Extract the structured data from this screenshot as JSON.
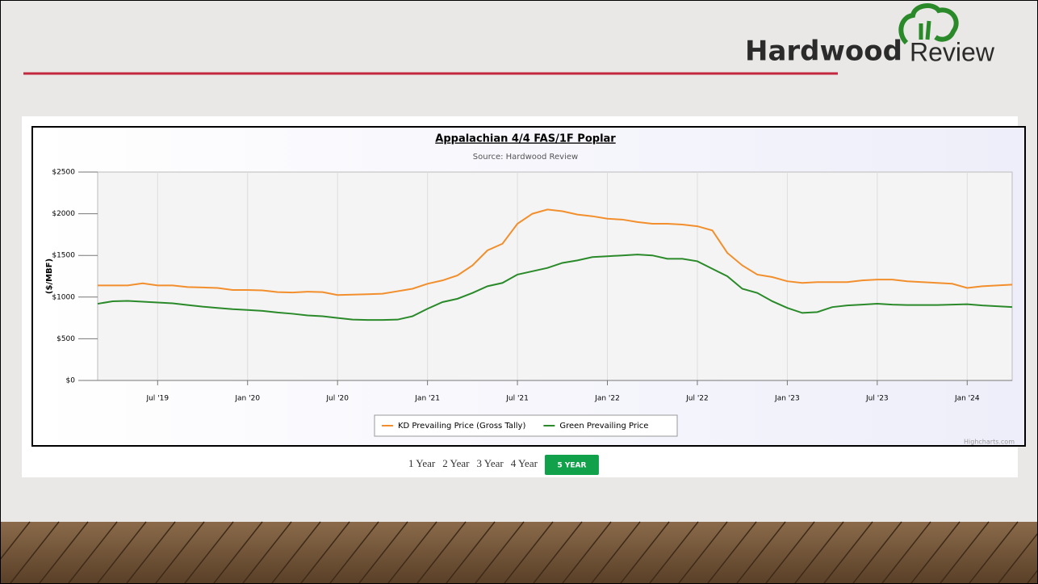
{
  "logo": {
    "brand": "Hardwood",
    "suffix": "Review"
  },
  "range_buttons": [
    "1 Year",
    "2 Year",
    "3 Year",
    "4 Year",
    "5 YEAR"
  ],
  "credit": "Highcharts.com",
  "chart_data": {
    "type": "line",
    "title": "Appalachian 4/4 FAS/1F Poplar",
    "subtitle": "Source: Hardwood Review",
    "y_label": "($/MBF)",
    "grid": true,
    "x": [
      "2019-03",
      "2019-04",
      "2019-05",
      "2019-06",
      "2019-07",
      "2019-08",
      "2019-09",
      "2019-10",
      "2019-11",
      "2019-12",
      "2020-01",
      "2020-02",
      "2020-03",
      "2020-04",
      "2020-05",
      "2020-06",
      "2020-07",
      "2020-08",
      "2020-09",
      "2020-10",
      "2020-11",
      "2020-12",
      "2021-01",
      "2021-02",
      "2021-03",
      "2021-04",
      "2021-05",
      "2021-06",
      "2021-07",
      "2021-08",
      "2021-09",
      "2021-10",
      "2021-11",
      "2021-12",
      "2022-01",
      "2022-02",
      "2022-03",
      "2022-04",
      "2022-05",
      "2022-06",
      "2022-07",
      "2022-08",
      "2022-09",
      "2022-10",
      "2022-11",
      "2022-12",
      "2023-01",
      "2023-02",
      "2023-03",
      "2023-04",
      "2023-05",
      "2023-06",
      "2023-07",
      "2023-08",
      "2023-09",
      "2023-10",
      "2023-11",
      "2023-12",
      "2024-01",
      "2024-02",
      "2024-03",
      "2024-04"
    ],
    "xlim": [
      "2019-03",
      "2024-04"
    ],
    "xticks": [
      {
        "value": "2019-07",
        "label": "Jul '19"
      },
      {
        "value": "2020-01",
        "label": "Jan '20"
      },
      {
        "value": "2020-07",
        "label": "Jul '20"
      },
      {
        "value": "2021-01",
        "label": "Jan '21"
      },
      {
        "value": "2021-07",
        "label": "Jul '21"
      },
      {
        "value": "2022-01",
        "label": "Jan '22"
      },
      {
        "value": "2022-07",
        "label": "Jul '22"
      },
      {
        "value": "2023-01",
        "label": "Jan '23"
      },
      {
        "value": "2023-07",
        "label": "Jul '23"
      },
      {
        "value": "2024-01",
        "label": "Jan '24"
      }
    ],
    "ylim": [
      0,
      2500
    ],
    "yticks": [
      {
        "value": 0,
        "label": "$0"
      },
      {
        "value": 500,
        "label": "$500"
      },
      {
        "value": 1000,
        "label": "$1000"
      },
      {
        "value": 1500,
        "label": "$1500"
      },
      {
        "value": 2000,
        "label": "$2000"
      },
      {
        "value": 2500,
        "label": "$2500"
      }
    ],
    "series": [
      {
        "name": "KD Prevailing Price (Gross Tally)",
        "color": "#f28f2c",
        "values": [
          1140,
          1140,
          1140,
          1165,
          1140,
          1140,
          1120,
          1115,
          1110,
          1085,
          1085,
          1080,
          1060,
          1055,
          1065,
          1060,
          1025,
          1030,
          1035,
          1040,
          1070,
          1100,
          1160,
          1200,
          1260,
          1380,
          1560,
          1640,
          1880,
          2000,
          2050,
          2030,
          1990,
          1970,
          1940,
          1930,
          1900,
          1880,
          1880,
          1870,
          1850,
          1800,
          1530,
          1380,
          1270,
          1240,
          1190,
          1170,
          1180,
          1180,
          1180,
          1200,
          1210,
          1210,
          1190,
          1180,
          1170,
          1160,
          1110,
          1130,
          1140,
          1150
        ]
      },
      {
        "name": "Green Prevailing Price",
        "color": "#2a8a2a",
        "values": [
          920,
          950,
          955,
          945,
          935,
          925,
          905,
          885,
          870,
          855,
          845,
          835,
          815,
          800,
          780,
          770,
          750,
          730,
          725,
          725,
          730,
          770,
          860,
          940,
          980,
          1050,
          1130,
          1170,
          1270,
          1310,
          1350,
          1410,
          1440,
          1480,
          1490,
          1500,
          1510,
          1500,
          1460,
          1460,
          1430,
          1340,
          1250,
          1100,
          1050,
          950,
          870,
          810,
          820,
          880,
          900,
          910,
          920,
          910,
          905,
          905,
          905,
          910,
          915,
          900,
          890,
          880
        ]
      }
    ]
  }
}
